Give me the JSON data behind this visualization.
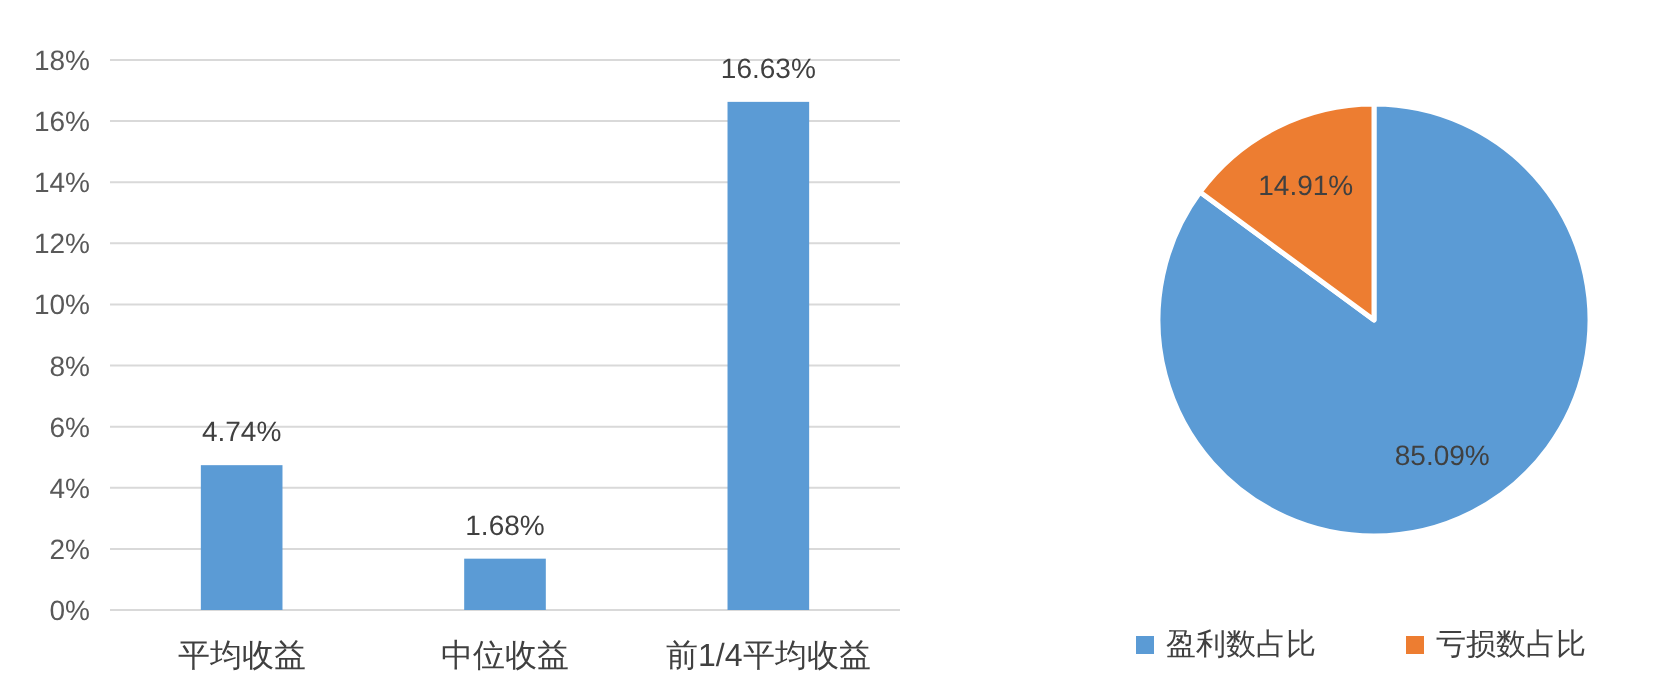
{
  "chart_data": [
    {
      "type": "bar",
      "categories": [
        "平均收益",
        "中位收益",
        "前1/4平均收益"
      ],
      "values": [
        4.74,
        1.68,
        16.63
      ],
      "value_labels": [
        "4.74%",
        "1.68%",
        "16.63%"
      ],
      "color": "#5b9bd5",
      "ylim": [
        0,
        18
      ],
      "yticks": [
        {
          "value": 0,
          "label": "0%"
        },
        {
          "value": 2,
          "label": "2%"
        },
        {
          "value": 4,
          "label": "4%"
        },
        {
          "value": 6,
          "label": "6%"
        },
        {
          "value": 8,
          "label": "8%"
        },
        {
          "value": 10,
          "label": "10%"
        },
        {
          "value": 12,
          "label": "12%"
        },
        {
          "value": 14,
          "label": "14%"
        },
        {
          "value": 16,
          "label": "16%"
        },
        {
          "value": 18,
          "label": "18%"
        }
      ],
      "grid": "y"
    },
    {
      "type": "pie",
      "categories": [
        "盈利数占比",
        "亏损数占比"
      ],
      "values": [
        85.09,
        14.91
      ],
      "colors": [
        "#5b9bd5",
        "#ed7d31"
      ],
      "value_labels": [
        "85.09%",
        "14.91%"
      ],
      "legend": "bottom"
    }
  ]
}
